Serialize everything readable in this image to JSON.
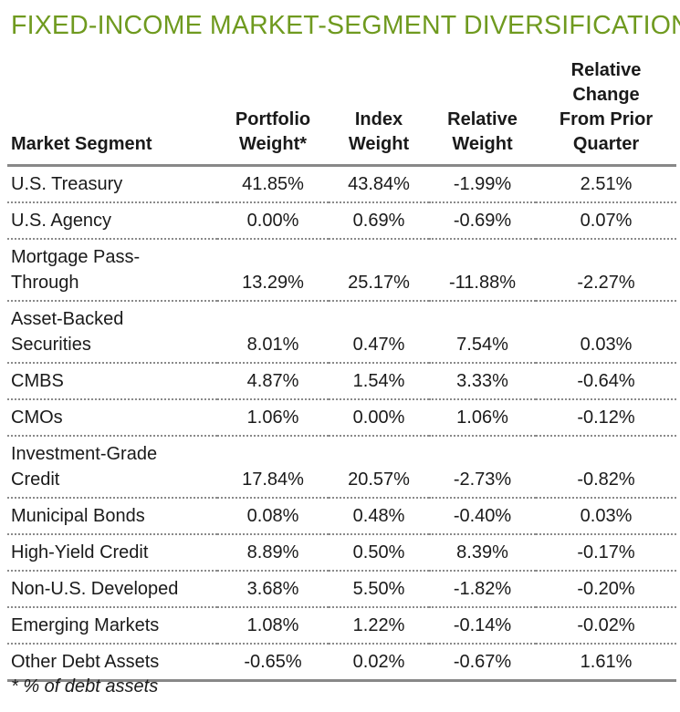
{
  "chart_data": {
    "type": "table",
    "title": "FIXED-INCOME MARKET-SEGMENT DIVERSIFICATION",
    "columns": [
      "Market Segment",
      "Portfolio\nWeight*",
      "Index\nWeight",
      "Relative\nWeight",
      "Relative\nChange\nFrom Prior\nQuarter"
    ],
    "rows": [
      [
        "U.S. Treasury",
        "41.85%",
        "43.84%",
        "-1.99%",
        "2.51%"
      ],
      [
        "U.S. Agency",
        "0.00%",
        "0.69%",
        "-0.69%",
        "0.07%"
      ],
      [
        "Mortgage Pass-\nThrough",
        "13.29%",
        "25.17%",
        "-11.88%",
        "-2.27%"
      ],
      [
        "Asset-Backed\nSecurities",
        "8.01%",
        "0.47%",
        "7.54%",
        "0.03%"
      ],
      [
        "CMBS",
        "4.87%",
        "1.54%",
        "3.33%",
        "-0.64%"
      ],
      [
        "CMOs",
        "1.06%",
        "0.00%",
        "1.06%",
        "-0.12%"
      ],
      [
        "Investment-Grade\nCredit",
        "17.84%",
        "20.57%",
        "-2.73%",
        "-0.82%"
      ],
      [
        "Municipal Bonds",
        "0.08%",
        "0.48%",
        "-0.40%",
        "0.03%"
      ],
      [
        "High-Yield Credit",
        "8.89%",
        "0.50%",
        "8.39%",
        "-0.17%"
      ],
      [
        "Non-U.S. Developed",
        "3.68%",
        "5.50%",
        "-1.82%",
        "-0.20%"
      ],
      [
        "Emerging Markets",
        "1.08%",
        "1.22%",
        "-0.14%",
        "-0.02%"
      ],
      [
        "Other Debt Assets",
        "-0.65%",
        "0.02%",
        "-0.67%",
        "1.61%"
      ]
    ],
    "footnote": "* % of debt assets"
  },
  "colors": {
    "title": "#6f9a1f",
    "text": "#1a1a1a",
    "rule": "#888888"
  }
}
